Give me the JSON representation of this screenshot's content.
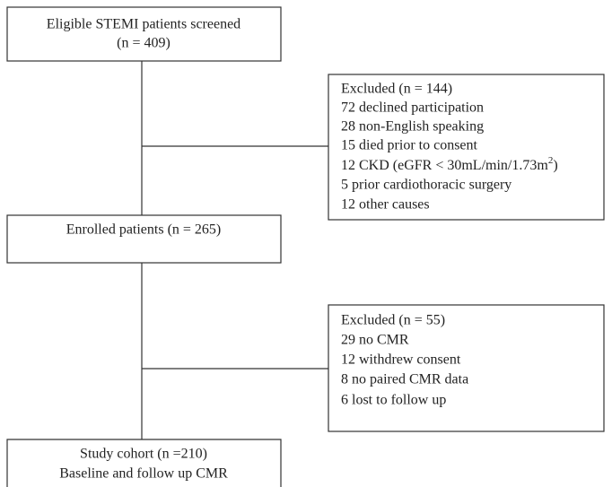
{
  "nodes": [
    {
      "lines": [
        "Eligible STEMI patients screened",
        "(n = 409)"
      ]
    },
    {
      "lines": [
        "Enrolled patients (n = 265)"
      ]
    },
    {
      "lines": [
        "Study cohort (n =210)",
        "Baseline and follow up CMR"
      ]
    }
  ],
  "exclusions": [
    {
      "title": "Excluded (n = 144)",
      "items": [
        "72 declined participation",
        "28 non-English speaking",
        "15 died prior to consent",
        {
          "text": "12 CKD (eGFR < 30mL/min/1.73m",
          "superscript": "2",
          "suffix": ")"
        },
        "5 prior cardiothoracic surgery",
        "12 other causes"
      ]
    },
    {
      "title": "Excluded (n = 55)",
      "items": [
        "29 no CMR",
        "12 withdrew consent",
        "8 no paired CMR data",
        "6 lost to follow up"
      ]
    }
  ]
}
